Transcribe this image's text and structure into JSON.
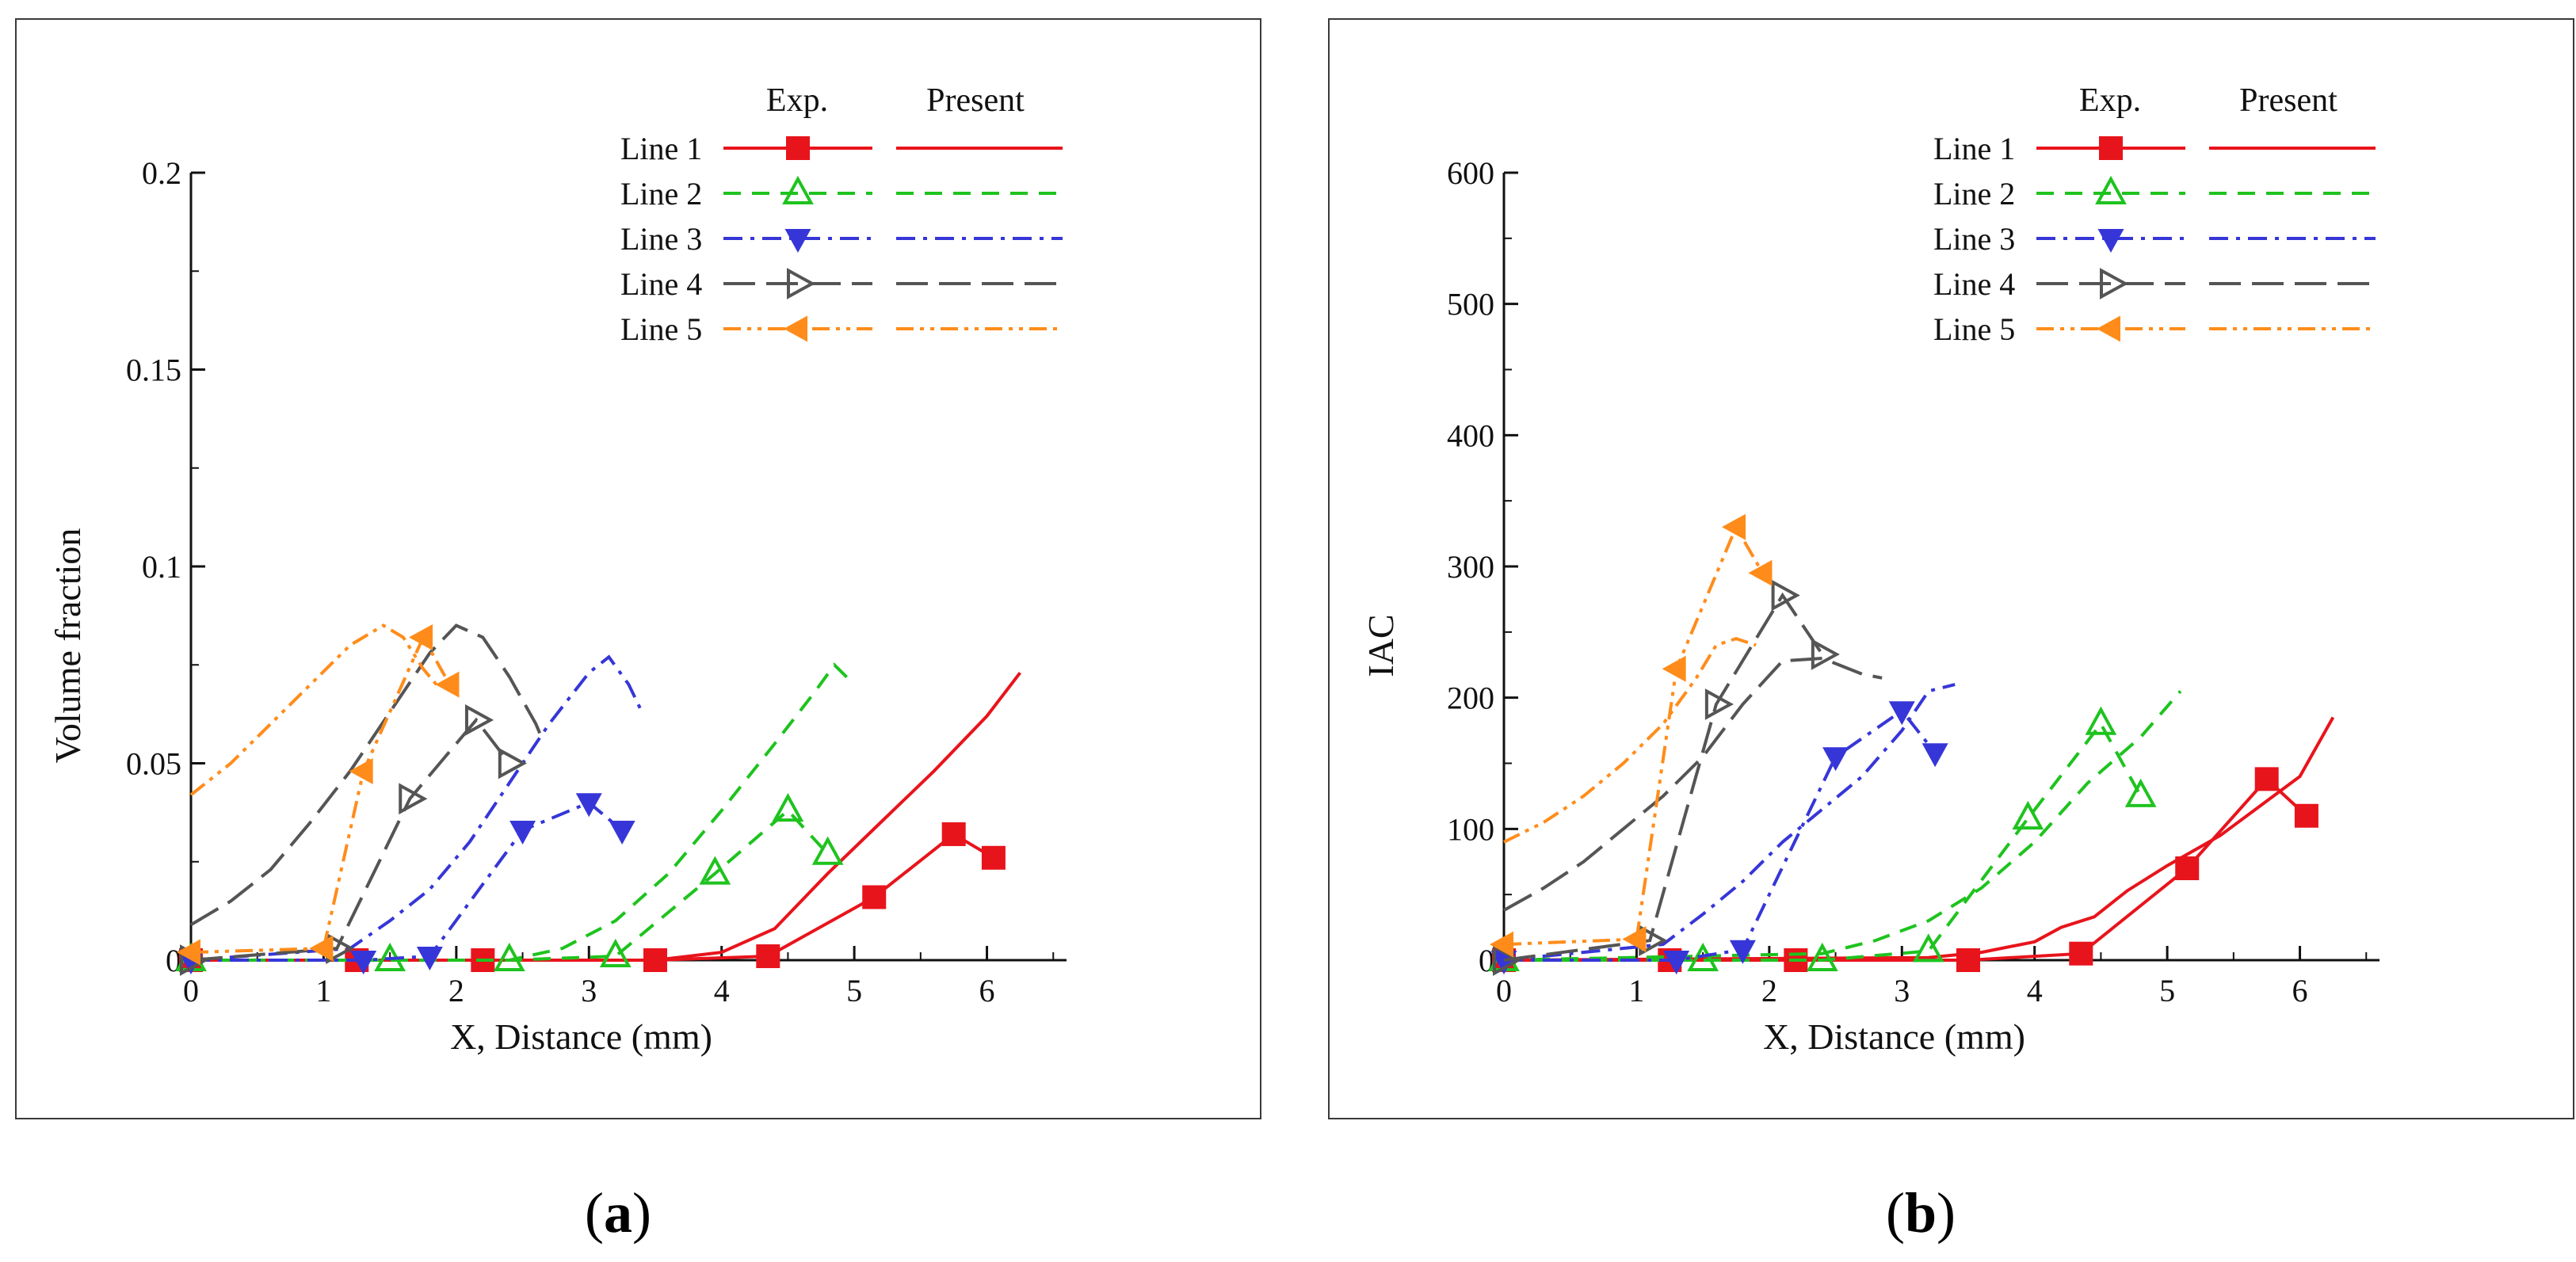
{
  "chart_data": [
    {
      "type": "line",
      "panel": "a",
      "xlabel": "X, Distance (mm)",
      "ylabel": "Volume fraction",
      "xlim": [
        0,
        6.6
      ],
      "ylim": [
        0,
        0.2
      ],
      "xticks": [
        0,
        1,
        2,
        3,
        4,
        5,
        6
      ],
      "yticks": [
        0,
        0.05,
        0.1,
        0.15,
        0.2
      ],
      "ytick_labels": [
        "0",
        "0.05",
        "0.1",
        "0.15",
        "0.2"
      ],
      "legend": {
        "placement": "top-right",
        "header_exp": "Exp.",
        "header_present": "Present",
        "entries": [
          "Line 1",
          "Line 2",
          "Line 3",
          "Line 4",
          "Line 5"
        ]
      },
      "series": [
        {
          "name": "Line 1",
          "color": "#e8141c",
          "marker": "square",
          "dash": "solid",
          "exp": [
            [
              0,
              0
            ],
            [
              1.25,
              0
            ],
            [
              2.2,
              0
            ],
            [
              3.5,
              0
            ],
            [
              4.35,
              0.001
            ],
            [
              5.15,
              0.016
            ],
            [
              5.75,
              0.032
            ],
            [
              6.05,
              0.026
            ]
          ],
          "present": [
            [
              0,
              0
            ],
            [
              3.5,
              0
            ],
            [
              4,
              0.002
            ],
            [
              4.4,
              0.008
            ],
            [
              4.8,
              0.022
            ],
            [
              5.2,
              0.035
            ],
            [
              5.6,
              0.048
            ],
            [
              6,
              0.062
            ],
            [
              6.25,
              0.073
            ]
          ]
        },
        {
          "name": "Line 2",
          "color": "#1ec31e",
          "marker": "triangle-up",
          "dash": "dash",
          "exp": [
            [
              0,
              0
            ],
            [
              1.5,
              0
            ],
            [
              2.4,
              0
            ],
            [
              3.2,
              0.001
            ],
            [
              3.95,
              0.022
            ],
            [
              4.5,
              0.038
            ],
            [
              4.8,
              0.027
            ]
          ],
          "present": [
            [
              0,
              0
            ],
            [
              2.4,
              0
            ],
            [
              2.8,
              0.003
            ],
            [
              3.2,
              0.01
            ],
            [
              3.6,
              0.022
            ],
            [
              4,
              0.038
            ],
            [
              4.4,
              0.055
            ],
            [
              4.7,
              0.068
            ],
            [
              4.85,
              0.075
            ],
            [
              5,
              0.07
            ]
          ]
        },
        {
          "name": "Line 3",
          "color": "#3636d8",
          "marker": "triangle-down",
          "dash": "dashdot",
          "exp": [
            [
              0,
              0
            ],
            [
              1.3,
              0
            ],
            [
              1.8,
              0.001
            ],
            [
              2.5,
              0.033
            ],
            [
              3,
              0.04
            ],
            [
              3.25,
              0.033
            ]
          ],
          "present": [
            [
              0,
              0
            ],
            [
              1.2,
              0.003
            ],
            [
              1.5,
              0.01
            ],
            [
              1.8,
              0.018
            ],
            [
              2.1,
              0.03
            ],
            [
              2.4,
              0.045
            ],
            [
              2.7,
              0.06
            ],
            [
              3,
              0.073
            ],
            [
              3.15,
              0.077
            ],
            [
              3.3,
              0.07
            ],
            [
              3.4,
              0.063
            ]
          ]
        },
        {
          "name": "Line 4",
          "color": "#555555",
          "marker": "triangle-right",
          "dash": "longdash",
          "exp": [
            [
              0,
              0
            ],
            [
              1.1,
              0.003
            ],
            [
              1.65,
              0.041
            ],
            [
              2.15,
              0.061
            ],
            [
              2.4,
              0.05
            ]
          ],
          "present": [
            [
              0,
              0.009
            ],
            [
              0.3,
              0.015
            ],
            [
              0.6,
              0.023
            ],
            [
              0.9,
              0.035
            ],
            [
              1.2,
              0.048
            ],
            [
              1.5,
              0.063
            ],
            [
              1.8,
              0.078
            ],
            [
              2,
              0.085
            ],
            [
              2.2,
              0.082
            ],
            [
              2.4,
              0.072
            ],
            [
              2.6,
              0.06
            ],
            [
              2.65,
              0.056
            ]
          ]
        },
        {
          "name": "Line 5",
          "color": "#ff8c1a",
          "marker": "triangle-left",
          "dash": "dashdotdot",
          "exp": [
            [
              0,
              0.002
            ],
            [
              1,
              0.003
            ],
            [
              1.3,
              0.048
            ],
            [
              1.75,
              0.082
            ],
            [
              1.95,
              0.07
            ]
          ],
          "present": [
            [
              0,
              0.042
            ],
            [
              0.3,
              0.05
            ],
            [
              0.6,
              0.06
            ],
            [
              0.9,
              0.07
            ],
            [
              1.2,
              0.08
            ],
            [
              1.45,
              0.085
            ],
            [
              1.6,
              0.082
            ],
            [
              1.75,
              0.074
            ],
            [
              1.85,
              0.07
            ]
          ]
        }
      ]
    },
    {
      "type": "line",
      "panel": "b",
      "xlabel": "X, Distance (mm)",
      "ylabel": "IAC",
      "xlim": [
        0,
        6.6
      ],
      "ylim": [
        0,
        600
      ],
      "xticks": [
        0,
        1,
        2,
        3,
        4,
        5,
        6
      ],
      "yticks": [
        0,
        100,
        200,
        300,
        400,
        500,
        600
      ],
      "ytick_labels": [
        "0",
        "100",
        "200",
        "300",
        "400",
        "500",
        "600"
      ],
      "legend": {
        "placement": "top-right",
        "header_exp": "Exp.",
        "header_present": "Present",
        "entries": [
          "Line 1",
          "Line 2",
          "Line 3",
          "Line 4",
          "Line 5"
        ]
      },
      "series": [
        {
          "name": "Line 1",
          "color": "#e8141c",
          "marker": "square",
          "dash": "solid",
          "exp": [
            [
              0,
              0
            ],
            [
              1.25,
              0
            ],
            [
              2.2,
              0
            ],
            [
              3.5,
              0
            ],
            [
              4.35,
              5
            ],
            [
              5.15,
              70
            ],
            [
              5.75,
              138
            ],
            [
              6.05,
              110
            ]
          ],
          "present": [
            [
              0,
              0
            ],
            [
              3.2,
              2
            ],
            [
              3.6,
              6
            ],
            [
              4,
              14
            ],
            [
              4.2,
              25
            ],
            [
              4.45,
              33
            ],
            [
              4.7,
              53
            ],
            [
              5,
              72
            ],
            [
              5.4,
              95
            ],
            [
              5.8,
              125
            ],
            [
              6,
              140
            ],
            [
              6.25,
              185
            ]
          ]
        },
        {
          "name": "Line 2",
          "color": "#1ec31e",
          "marker": "triangle-up",
          "dash": "dash",
          "exp": [
            [
              0,
              0
            ],
            [
              1.5,
              0
            ],
            [
              2.4,
              0
            ],
            [
              3.2,
              7
            ],
            [
              3.95,
              108
            ],
            [
              4.5,
              180
            ],
            [
              4.8,
              125
            ]
          ],
          "present": [
            [
              0,
              0
            ],
            [
              2.4,
              5
            ],
            [
              2.8,
              15
            ],
            [
              3.2,
              30
            ],
            [
              3.6,
              55
            ],
            [
              4,
              90
            ],
            [
              4.4,
              135
            ],
            [
              4.8,
              170
            ],
            [
              5.1,
              205
            ]
          ]
        },
        {
          "name": "Line 3",
          "color": "#3636d8",
          "marker": "triangle-down",
          "dash": "dashdot",
          "exp": [
            [
              0,
              0
            ],
            [
              1.3,
              0
            ],
            [
              1.8,
              8
            ],
            [
              2.5,
              155
            ],
            [
              3,
              190
            ],
            [
              3.25,
              158
            ]
          ],
          "present": [
            [
              0,
              0
            ],
            [
              1.2,
              12
            ],
            [
              1.5,
              35
            ],
            [
              1.8,
              60
            ],
            [
              2.1,
              90
            ],
            [
              2.4,
              115
            ],
            [
              2.7,
              140
            ],
            [
              3,
              175
            ],
            [
              3.2,
              205
            ],
            [
              3.4,
              210
            ]
          ]
        },
        {
          "name": "Line 4",
          "color": "#555555",
          "marker": "triangle-right",
          "dash": "longdash",
          "exp": [
            [
              0,
              0
            ],
            [
              1.1,
              15
            ],
            [
              1.6,
              195
            ],
            [
              2.1,
              278
            ],
            [
              2.4,
              233
            ]
          ],
          "present": [
            [
              0,
              38
            ],
            [
              0.3,
              55
            ],
            [
              0.6,
              75
            ],
            [
              0.9,
              100
            ],
            [
              1.2,
              125
            ],
            [
              1.5,
              155
            ],
            [
              1.8,
              195
            ],
            [
              2.1,
              228
            ],
            [
              2.4,
              230
            ],
            [
              2.7,
              218
            ],
            [
              2.85,
              215
            ]
          ]
        },
        {
          "name": "Line 5",
          "color": "#ff8c1a",
          "marker": "triangle-left",
          "dash": "dashdotdot",
          "exp": [
            [
              0,
              12
            ],
            [
              1,
              16
            ],
            [
              1.3,
              222
            ],
            [
              1.75,
              330
            ],
            [
              1.95,
              295
            ]
          ],
          "present": [
            [
              0,
              90
            ],
            [
              0.3,
              105
            ],
            [
              0.6,
              125
            ],
            [
              0.9,
              150
            ],
            [
              1.2,
              180
            ],
            [
              1.45,
              215
            ],
            [
              1.6,
              240
            ],
            [
              1.75,
              245
            ],
            [
              1.9,
              240
            ]
          ]
        }
      ]
    }
  ],
  "captions": {
    "a": "a",
    "b": "b"
  }
}
